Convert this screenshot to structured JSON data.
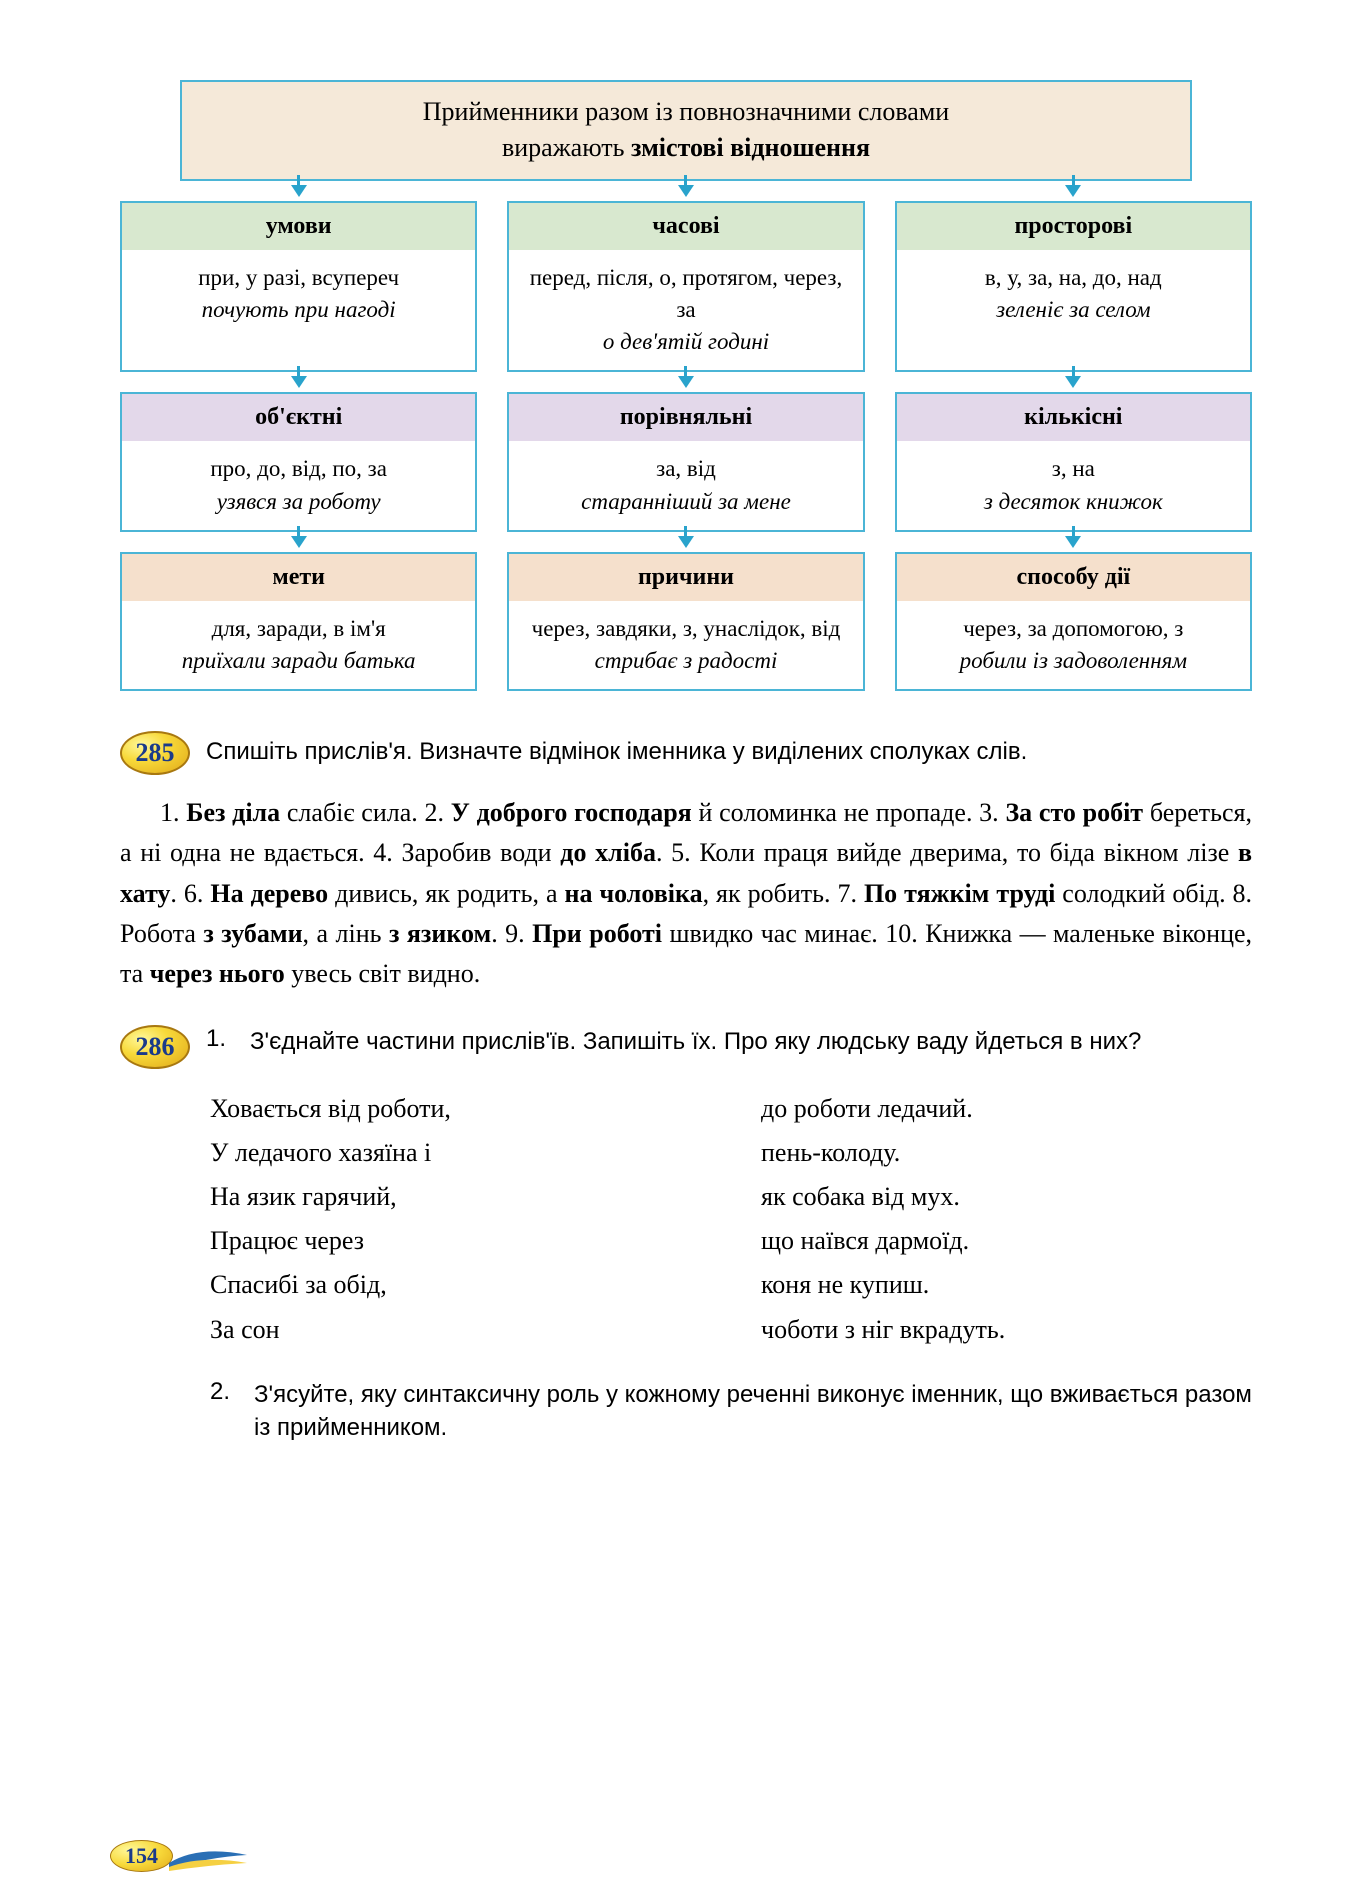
{
  "diagram": {
    "title_line1": "Прийменники разом із повнозначними словами",
    "title_line2_pre": "виражають ",
    "title_line2_bold": "змістові відношення",
    "colors": {
      "border": "#4bb5d6",
      "arrow": "#29a3cc",
      "header_bg": "#f5e9d9",
      "row1_hdr": "#d8e8cf",
      "row2_hdr": "#e3d8ea",
      "row3_hdr": "#f5e0cc"
    },
    "cells": [
      [
        {
          "h": "умови",
          "t": "при, у разі, всупереч",
          "e": "почують при нагоді"
        },
        {
          "h": "часові",
          "t": "перед, після, о, протягом, через, за",
          "e": "о дев'ятій годині"
        },
        {
          "h": "просторові",
          "t": "в, у, за, на, до, над",
          "e": "зеленіє за селом"
        }
      ],
      [
        {
          "h": "об'єктні",
          "t": "про, до, від, по, за",
          "e": "узявся за роботу"
        },
        {
          "h": "порівняльні",
          "t": "за, від",
          "e": "старанніший за мене"
        },
        {
          "h": "кількісні",
          "t": "з, на",
          "e": "з десяток книжок"
        }
      ],
      [
        {
          "h": "мети",
          "t": "для, заради, в ім'я",
          "e": "приїхали заради батька"
        },
        {
          "h": "причини",
          "t": "через, завдяки, з, унаслідок, від",
          "e": "стрибає з радості"
        },
        {
          "h": "способу дії",
          "t": "через, за допомогою, з",
          "e": "робили із задоволенням"
        }
      ]
    ]
  },
  "ex285": {
    "num": "285",
    "prompt": "Спишіть прислів'я. Визначте відмінок іменника у виділених сполуках слів.",
    "text_html": "1. <b>Без діла</b> слабіє сила. 2. <b>У доброго господаря</b> й соломинка не пропаде. 3. <b>За сто робіт</b> береться, а ні одна не вдається. 4. Заробив води <b>до хліба</b>. 5. Коли праця вийде дверима, то біда вікном лізе <b>в хату</b>. 6. <b>На дерево</b> дивись, як родить, а <b>на чоловіка</b>, як робить. 7. <b>По тяжкім труді</b> солодкий обід. 8. Робота <b>з зубами</b>, а лінь <b>з язиком</b>. 9. <b>При роботі</b> швидко час минає. 10. Книжка — маленьке віконце, та <b>через нього</b> увесь світ видно."
  },
  "ex286": {
    "num": "286",
    "sub1_num": "1.",
    "sub1_text": "З'єднайте частини прислів'їв. Запишіть їх. Про яку людську ваду йдеться в них?",
    "left": [
      "Ховається від роботи,",
      "У ледачого хазяїна і",
      "На язик гарячий,",
      "Працює через",
      "Спасибі за обід,",
      "За сон"
    ],
    "right": [
      "до роботи ледачий.",
      "пень-колоду.",
      "як собака від мух.",
      "що наївся дармоїд.",
      "коня не купиш.",
      "чоботи з ніг вкрадуть."
    ],
    "sub2_num": "2.",
    "sub2_text": "З'ясуйте, яку синтаксичну роль у кожному реченні виконує іменник, що вживається разом із прийменником."
  },
  "page_number": "154"
}
